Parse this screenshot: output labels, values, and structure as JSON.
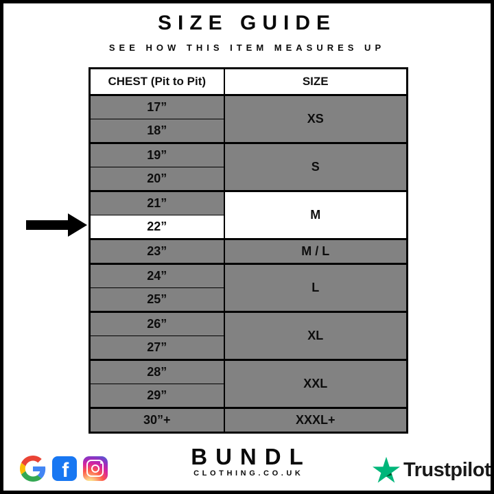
{
  "header": {
    "title": "SIZE GUIDE",
    "subtitle": "SEE HOW THIS ITEM MEASURES UP"
  },
  "table": {
    "columns": [
      "CHEST (Pit to Pit)",
      "SIZE"
    ],
    "rows": [
      {
        "chest": "17”",
        "size": "XS",
        "span": 2
      },
      {
        "chest": "18”"
      },
      {
        "chest": "19”",
        "size": "S",
        "span": 2
      },
      {
        "chest": "20”"
      },
      {
        "chest": "21”",
        "size": "M",
        "span": 2,
        "size_highlight": true
      },
      {
        "chest": "22”",
        "highlight": true
      },
      {
        "chest": "23”",
        "size": "M / L",
        "span": 1
      },
      {
        "chest": "24”",
        "size": "L",
        "span": 2
      },
      {
        "chest": "25”"
      },
      {
        "chest": "26”",
        "size": "XL",
        "span": 2
      },
      {
        "chest": "27”"
      },
      {
        "chest": "28”",
        "size": "XXL",
        "span": 2
      },
      {
        "chest": "29”"
      },
      {
        "chest": "30”+",
        "size": "XXXL+",
        "span": 1
      }
    ],
    "highlighted_measurement": "22”",
    "highlighted_size": "M"
  },
  "chart_data": {
    "type": "table",
    "title": "SIZE GUIDE",
    "subtitle": "SEE HOW THIS ITEM MEASURES UP",
    "columns": [
      "CHEST (Pit to Pit)",
      "SIZE"
    ],
    "mapping": [
      {
        "chest": [
          "17”",
          "18”"
        ],
        "size": "XS"
      },
      {
        "chest": [
          "19”",
          "20”"
        ],
        "size": "S"
      },
      {
        "chest": [
          "21”",
          "22”"
        ],
        "size": "M"
      },
      {
        "chest": [
          "23”"
        ],
        "size": "M / L"
      },
      {
        "chest": [
          "24”",
          "25”"
        ],
        "size": "L"
      },
      {
        "chest": [
          "26”",
          "27”"
        ],
        "size": "XL"
      },
      {
        "chest": [
          "28”",
          "29”"
        ],
        "size": "XXL"
      },
      {
        "chest": [
          "30”+"
        ],
        "size": "XXXL+"
      }
    ],
    "highlight": {
      "chest": "22”",
      "size": "M",
      "indicator": "black arrow pointing at 22” row"
    }
  },
  "footer": {
    "brand": "BUNDL",
    "brand_sub": "CLOTHING.CO.UK",
    "icons": [
      "google-icon",
      "facebook-icon",
      "instagram-icon"
    ],
    "trustpilot_label": "Trustpilot"
  },
  "colors": {
    "cell_gray": "#828282",
    "highlight_white": "#ffffff",
    "border_black": "#000000",
    "trustpilot_green": "#00B67A",
    "trustpilot_dark_green": "#005128",
    "facebook_blue": "#1877F2"
  }
}
